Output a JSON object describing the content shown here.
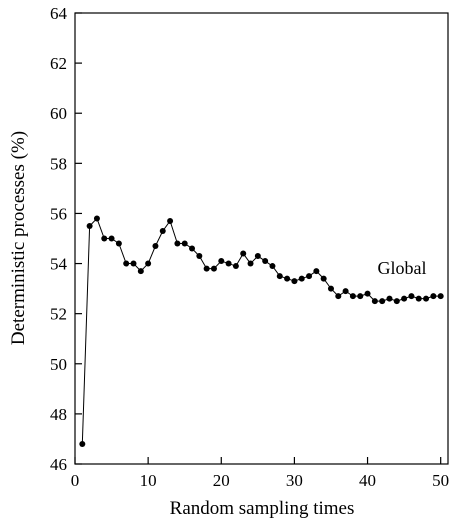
{
  "chart_data": {
    "type": "line",
    "x_label": "Random sampling times",
    "y_label": "Deterministic processes (%)",
    "annotation": "Global",
    "x": [
      1,
      2,
      3,
      4,
      5,
      6,
      7,
      8,
      9,
      10,
      11,
      12,
      13,
      14,
      15,
      16,
      17,
      18,
      19,
      20,
      21,
      22,
      23,
      24,
      25,
      26,
      27,
      28,
      29,
      30,
      31,
      32,
      33,
      34,
      35,
      36,
      37,
      38,
      39,
      40,
      41,
      42,
      43,
      44,
      45,
      46,
      47,
      48,
      49,
      50
    ],
    "series": [
      {
        "name": "Global",
        "color": "#000000",
        "values": [
          46.8,
          55.5,
          55.8,
          55.0,
          55.0,
          54.8,
          54.0,
          54.0,
          53.7,
          54.0,
          54.7,
          55.3,
          55.7,
          54.8,
          54.8,
          54.6,
          54.3,
          53.8,
          53.8,
          54.1,
          54.0,
          53.9,
          54.4,
          54.0,
          54.3,
          54.1,
          53.9,
          53.5,
          53.4,
          53.3,
          53.4,
          53.5,
          53.7,
          53.4,
          53.0,
          52.7,
          52.9,
          52.7,
          52.7,
          52.8,
          52.5,
          52.5,
          52.6,
          52.5,
          52.6,
          52.7,
          52.6,
          52.6,
          52.7,
          52.7
        ]
      }
    ],
    "xlim": [
      0,
      51
    ],
    "ylim": [
      46,
      64
    ],
    "xticks": [
      0,
      10,
      20,
      30,
      40,
      50
    ],
    "yticks": [
      46,
      48,
      50,
      52,
      54,
      56,
      58,
      60,
      62,
      64
    ]
  }
}
